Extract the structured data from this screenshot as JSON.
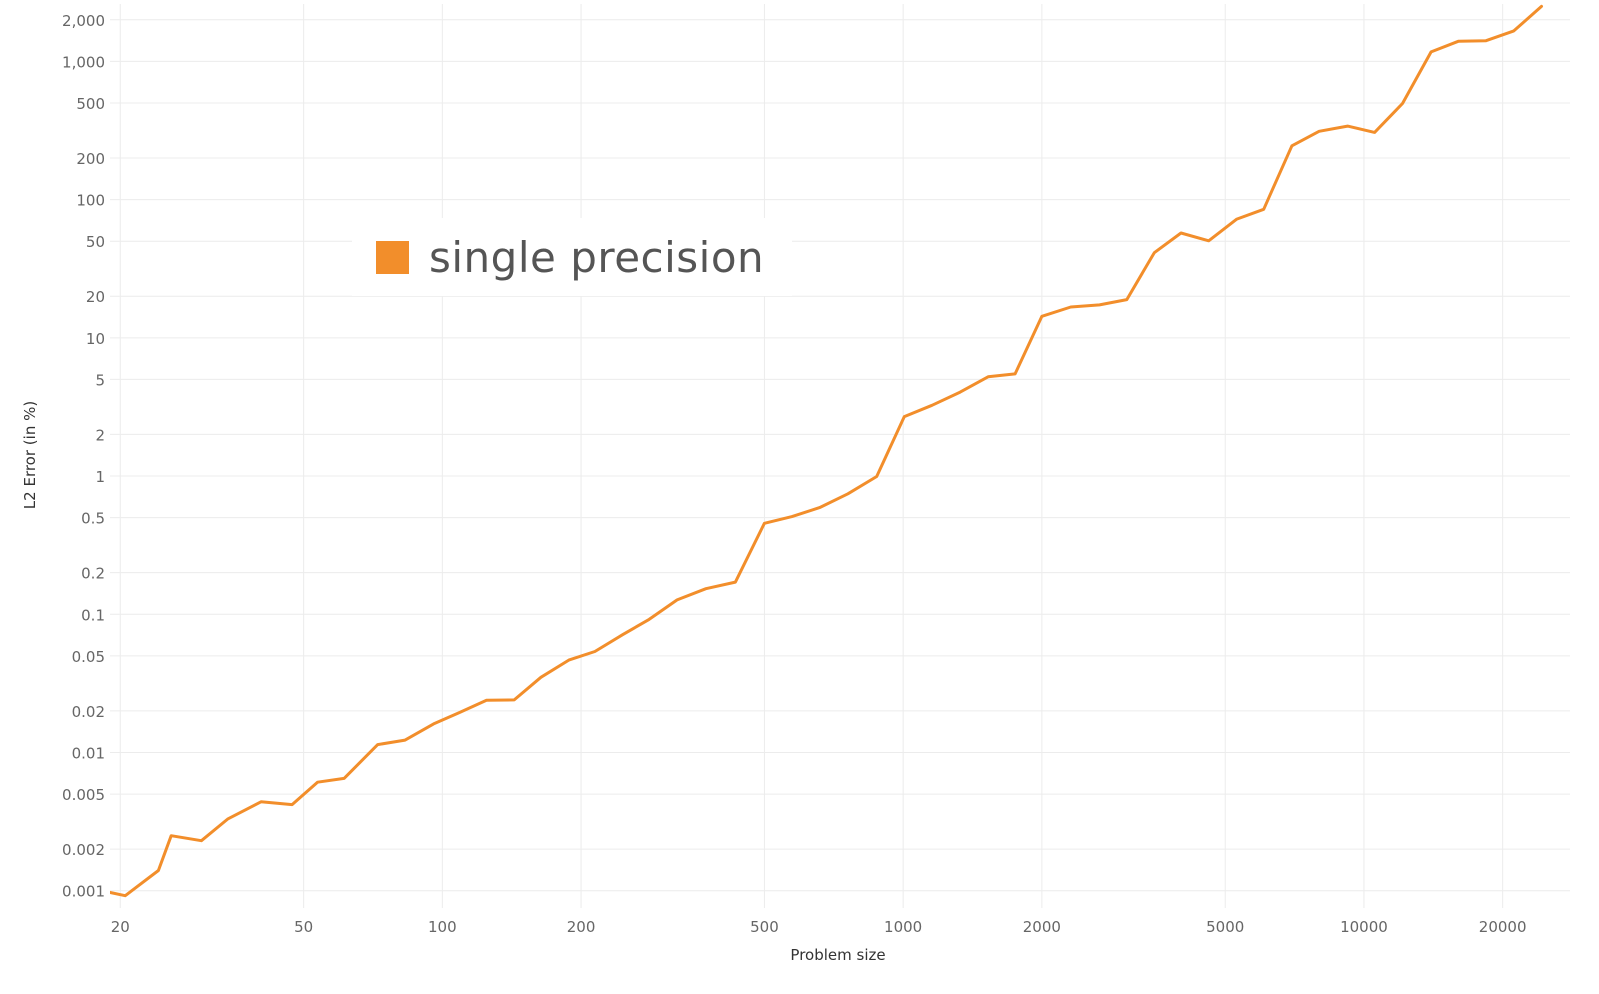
{
  "chart_data": {
    "type": "line",
    "xlabel": "Problem size",
    "ylabel": "L2 Error (in %)",
    "x_scale": "log",
    "y_scale": "log",
    "xlim": [
      19,
      28000
    ],
    "ylim": [
      0.00075,
      2600
    ],
    "grid": true,
    "legend_placement": "upper-left",
    "x_ticks": [
      {
        "value": 20,
        "label": "20"
      },
      {
        "value": 50,
        "label": "50"
      },
      {
        "value": 100,
        "label": "100"
      },
      {
        "value": 200,
        "label": "200"
      },
      {
        "value": 500,
        "label": "500"
      },
      {
        "value": 1000,
        "label": "1000"
      },
      {
        "value": 2000,
        "label": "2000"
      },
      {
        "value": 5000,
        "label": "5000"
      },
      {
        "value": 10000,
        "label": "10000"
      },
      {
        "value": 20000,
        "label": "20000"
      }
    ],
    "y_ticks": [
      {
        "value": 2000,
        "label": "2,000"
      },
      {
        "value": 1000,
        "label": "1,000"
      },
      {
        "value": 500,
        "label": "500"
      },
      {
        "value": 200,
        "label": "200"
      },
      {
        "value": 100,
        "label": "100"
      },
      {
        "value": 50,
        "label": "50"
      },
      {
        "value": 20,
        "label": "20"
      },
      {
        "value": 10,
        "label": "10"
      },
      {
        "value": 5,
        "label": "5"
      },
      {
        "value": 2,
        "label": "2"
      },
      {
        "value": 1,
        "label": "1"
      },
      {
        "value": 0.5,
        "label": "0.5"
      },
      {
        "value": 0.2,
        "label": "0.2"
      },
      {
        "value": 0.1,
        "label": "0.1"
      },
      {
        "value": 0.05,
        "label": "0.05"
      },
      {
        "value": 0.02,
        "label": "0.02"
      },
      {
        "value": 0.01,
        "label": "0.01"
      },
      {
        "value": 0.005,
        "label": "0.005"
      },
      {
        "value": 0.002,
        "label": "0.002"
      },
      {
        "value": 0.001,
        "label": "0.001"
      }
    ],
    "series": [
      {
        "name": "single precision",
        "color": "#F28E2B",
        "x": [
          18.5,
          20.5,
          24.2,
          25.8,
          30.0,
          34.2,
          40.4,
          47.2,
          53.6,
          61.2,
          72.4,
          83.0,
          95.7,
          108.7,
          124.7,
          143.2,
          163.6,
          188.1,
          214.3,
          246.1,
          281.0,
          323.2,
          373.2,
          432.4,
          500.0,
          573.7,
          658.6,
          758.6,
          876.2,
          1006.0,
          1155.0,
          1330.0,
          1529.0,
          1750.0,
          2000.0,
          2311.0,
          2667.0,
          3057.0,
          3508.0,
          4008.0,
          4604.0,
          5298.0,
          6061.0,
          6976.0,
          7992.0,
          9214.0,
          10545.0,
          12127.0,
          13986.0,
          16046.0,
          18405.0,
          21143.0,
          24287.0
        ],
        "y": [
          0.00099,
          0.00092,
          0.0014,
          0.0025,
          0.0023,
          0.0033,
          0.0044,
          0.0042,
          0.0061,
          0.0065,
          0.0114,
          0.0123,
          0.0161,
          0.0194,
          0.0239,
          0.024,
          0.035,
          0.0466,
          0.0538,
          0.0712,
          0.0918,
          0.127,
          0.153,
          0.171,
          0.455,
          0.509,
          0.591,
          0.744,
          0.993,
          2.69,
          3.25,
          4.05,
          5.22,
          5.48,
          14.3,
          16.7,
          17.3,
          18.9,
          41.3,
          57.3,
          50.3,
          72.2,
          85.0,
          245.0,
          312.0,
          340.0,
          306.0,
          496.0,
          1170.0,
          1400.0,
          1410.0,
          1660.0,
          2500.0
        ]
      }
    ]
  }
}
